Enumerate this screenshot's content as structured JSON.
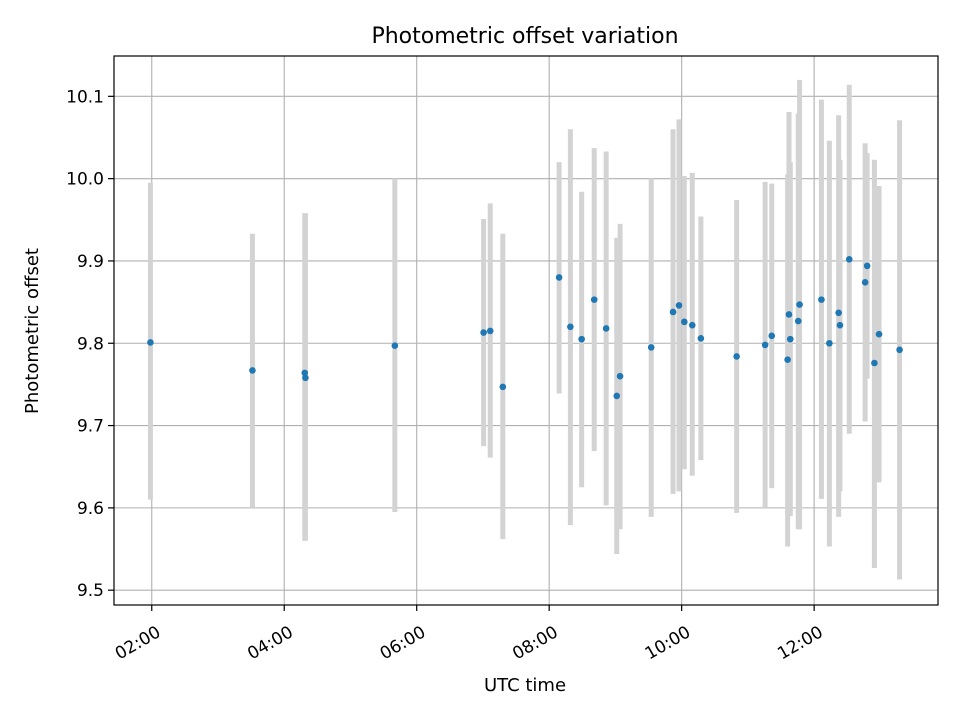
{
  "chart_data": {
    "type": "scatter",
    "title": "Photometric offset variation",
    "xlabel": "UTC time",
    "ylabel": "Photometric offset",
    "x_unit": "hours UTC",
    "xlim": [
      1.43,
      13.87
    ],
    "ylim": [
      9.482,
      10.149
    ],
    "x_ticks": [
      {
        "value": 2,
        "label": "02:00"
      },
      {
        "value": 4,
        "label": "04:00"
      },
      {
        "value": 6,
        "label": "06:00"
      },
      {
        "value": 8,
        "label": "08:00"
      },
      {
        "value": 10,
        "label": "10:00"
      },
      {
        "value": 12,
        "label": "12:00"
      }
    ],
    "y_ticks": [
      {
        "value": 9.5,
        "label": "9.5"
      },
      {
        "value": 9.6,
        "label": "9.6"
      },
      {
        "value": 9.7,
        "label": "9.7"
      },
      {
        "value": 9.8,
        "label": "9.8"
      },
      {
        "value": 9.9,
        "label": "9.9"
      },
      {
        "value": 10.0,
        "label": "10.0"
      },
      {
        "value": 10.1,
        "label": "10.1"
      }
    ],
    "grid": true,
    "marker_color": "#1f77b4",
    "errorbar_color": "#d3d3d3",
    "points": [
      {
        "x": 1.98,
        "y": 9.801,
        "lo": 9.61,
        "hi": 9.995
      },
      {
        "x": 3.52,
        "y": 9.767,
        "lo": 9.6,
        "hi": 9.933
      },
      {
        "x": 4.31,
        "y": 9.764,
        "lo": 9.56,
        "hi": 9.958
      },
      {
        "x": 4.32,
        "y": 9.758,
        "lo": 9.56,
        "hi": 9.958
      },
      {
        "x": 5.67,
        "y": 9.797,
        "lo": 9.595,
        "hi": 10.0
      },
      {
        "x": 7.01,
        "y": 9.813,
        "lo": 9.675,
        "hi": 9.951
      },
      {
        "x": 7.11,
        "y": 9.815,
        "lo": 9.661,
        "hi": 9.97
      },
      {
        "x": 7.3,
        "y": 9.747,
        "lo": 9.562,
        "hi": 9.933
      },
      {
        "x": 8.15,
        "y": 9.88,
        "lo": 9.739,
        "hi": 10.02
      },
      {
        "x": 8.32,
        "y": 9.82,
        "lo": 9.579,
        "hi": 10.06
      },
      {
        "x": 8.49,
        "y": 9.805,
        "lo": 9.625,
        "hi": 9.984
      },
      {
        "x": 8.68,
        "y": 9.853,
        "lo": 9.669,
        "hi": 10.037
      },
      {
        "x": 8.86,
        "y": 9.818,
        "lo": 9.603,
        "hi": 10.033
      },
      {
        "x": 9.02,
        "y": 9.736,
        "lo": 9.544,
        "hi": 9.928
      },
      {
        "x": 9.07,
        "y": 9.76,
        "lo": 9.574,
        "hi": 9.945
      },
      {
        "x": 9.54,
        "y": 9.795,
        "lo": 9.589,
        "hi": 10.0
      },
      {
        "x": 9.87,
        "y": 9.838,
        "lo": 9.617,
        "hi": 10.06
      },
      {
        "x": 9.96,
        "y": 9.846,
        "lo": 9.62,
        "hi": 10.072
      },
      {
        "x": 10.04,
        "y": 9.826,
        "lo": 9.647,
        "hi": 10.003
      },
      {
        "x": 10.16,
        "y": 9.822,
        "lo": 9.639,
        "hi": 10.007
      },
      {
        "x": 10.29,
        "y": 9.806,
        "lo": 9.658,
        "hi": 9.954
      },
      {
        "x": 10.83,
        "y": 9.784,
        "lo": 9.594,
        "hi": 9.974
      },
      {
        "x": 11.26,
        "y": 9.798,
        "lo": 9.6,
        "hi": 9.996
      },
      {
        "x": 11.36,
        "y": 9.809,
        "lo": 9.624,
        "hi": 9.994
      },
      {
        "x": 11.6,
        "y": 9.78,
        "lo": 9.553,
        "hi": 10.005
      },
      {
        "x": 11.62,
        "y": 9.835,
        "lo": 9.59,
        "hi": 10.081
      },
      {
        "x": 11.64,
        "y": 9.805,
        "lo": 9.59,
        "hi": 10.02
      },
      {
        "x": 11.76,
        "y": 9.827,
        "lo": 9.574,
        "hi": 10.079
      },
      {
        "x": 11.78,
        "y": 9.847,
        "lo": 9.574,
        "hi": 10.12
      },
      {
        "x": 12.11,
        "y": 9.853,
        "lo": 9.611,
        "hi": 10.096
      },
      {
        "x": 12.23,
        "y": 9.8,
        "lo": 9.553,
        "hi": 10.046
      },
      {
        "x": 12.37,
        "y": 9.837,
        "lo": 9.589,
        "hi": 10.077
      },
      {
        "x": 12.39,
        "y": 9.822,
        "lo": 9.62,
        "hi": 10.023
      },
      {
        "x": 12.53,
        "y": 9.902,
        "lo": 9.69,
        "hi": 10.114
      },
      {
        "x": 12.77,
        "y": 9.874,
        "lo": 9.705,
        "hi": 10.043
      },
      {
        "x": 12.8,
        "y": 9.894,
        "lo": 9.757,
        "hi": 10.031
      },
      {
        "x": 12.91,
        "y": 9.776,
        "lo": 9.527,
        "hi": 10.023
      },
      {
        "x": 12.98,
        "y": 9.811,
        "lo": 9.631,
        "hi": 9.991
      },
      {
        "x": 13.29,
        "y": 9.792,
        "lo": 9.513,
        "hi": 10.071
      }
    ]
  }
}
